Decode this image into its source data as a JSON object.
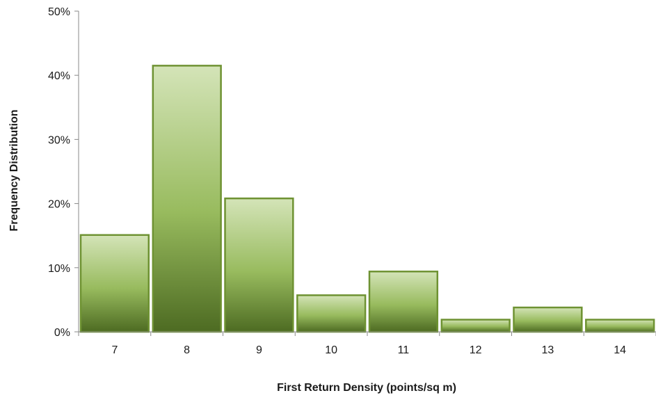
{
  "chart_data": {
    "type": "bar",
    "title": "",
    "xlabel": "First Return Density (points/sq m)",
    "ylabel": "Frequency Distribution",
    "categories": [
      "7",
      "8",
      "9",
      "10",
      "11",
      "12",
      "13",
      "14"
    ],
    "values": [
      15.1,
      41.5,
      20.8,
      5.7,
      9.4,
      1.9,
      3.8,
      1.9
    ],
    "ylim": [
      0,
      50
    ],
    "yticks": [
      "0%",
      "10%",
      "20%",
      "30%",
      "40%",
      "50%"
    ],
    "grid": false,
    "legend": "none",
    "colors": {
      "bar_top": "#d4e4b8",
      "bar_mid": "#98bb5e",
      "bar_bottom": "#4d6b22",
      "bar_edge": "#6e9232",
      "axis": "#888888"
    }
  }
}
